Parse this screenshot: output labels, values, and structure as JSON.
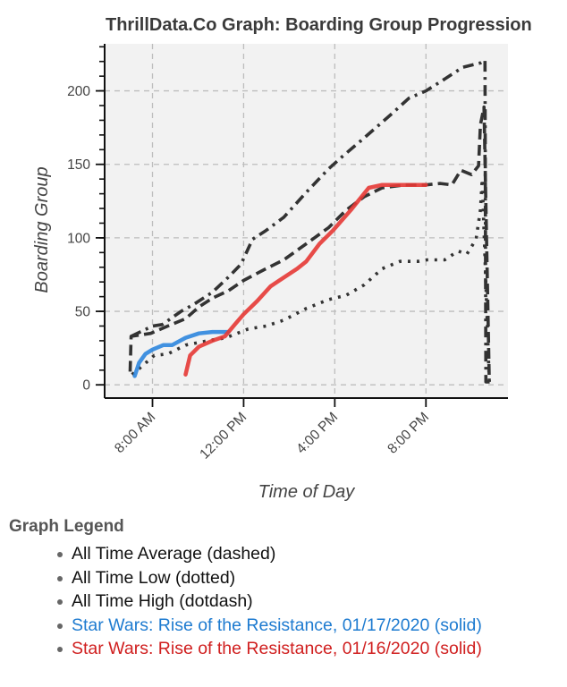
{
  "chart_data": {
    "type": "line",
    "title": "ThrillData.Co Graph: Boarding Group Progression",
    "xlabel": "Time of Day",
    "ylabel": "Boarding Group",
    "x_unit": "hour of day (decimal, 24h)",
    "xlim": [
      5.9,
      23.6
    ],
    "ylim": [
      -9,
      232
    ],
    "grid": true,
    "x_ticks": [
      {
        "value": 8,
        "label": "8:00 AM"
      },
      {
        "value": 12,
        "label": "12:00 PM"
      },
      {
        "value": 16,
        "label": "4:00 PM"
      },
      {
        "value": 20,
        "label": "8:00 PM"
      }
    ],
    "y_ticks": [
      {
        "value": 0,
        "label": "0"
      },
      {
        "value": 50,
        "label": "50"
      },
      {
        "value": 100,
        "label": "100"
      },
      {
        "value": 150,
        "label": "150"
      },
      {
        "value": 200,
        "label": "200"
      }
    ],
    "y_minor_step": 10,
    "series": [
      {
        "name": "All Time Average",
        "style": "dashed",
        "color": "#333333",
        "x": [
          7.02,
          7.06,
          7.92,
          8.67,
          9.45,
          10.04,
          10.63,
          11.33,
          12.0,
          12.98,
          13.76,
          14.75,
          15.73,
          16.51,
          17.29,
          18.08,
          19.06,
          20.0,
          20.63,
          21.14,
          21.53,
          22.0,
          22.31,
          22.39,
          22.55,
          22.78
        ],
        "y": [
          9,
          33,
          35,
          40,
          45,
          53,
          59,
          64,
          71,
          79,
          85,
          96,
          107,
          119,
          128,
          134,
          136,
          136,
          137,
          136,
          146,
          143,
          149,
          177,
          189,
          2
        ]
      },
      {
        "name": "All Time Low",
        "style": "dotted",
        "color": "#333333",
        "x": [
          7.1,
          7.49,
          8.08,
          8.67,
          9.45,
          10.43,
          11.22,
          12.2,
          12.98,
          13.76,
          14.75,
          15.73,
          16.51,
          17.29,
          18.08,
          18.86,
          19.65,
          20.04,
          20.82,
          21.41,
          21.8,
          22.2,
          22.39,
          22.47,
          22.78
        ],
        "y": [
          7,
          12,
          20,
          21,
          27,
          30,
          32,
          38,
          40,
          44,
          52,
          58,
          61,
          68,
          79,
          84,
          84,
          85,
          85,
          91,
          89,
          99,
          119,
          140,
          2
        ]
      },
      {
        "name": "All Time High",
        "style": "dotdash",
        "color": "#333333",
        "x": [
          7.06,
          8.0,
          8.43,
          9.25,
          9.84,
          10.63,
          11.25,
          11.88,
          12.39,
          12.98,
          13.76,
          14.75,
          15.73,
          16.31,
          17.29,
          18.47,
          19.25,
          20.0,
          20.82,
          21.61,
          22.39,
          22.59,
          22.63,
          22.86
        ],
        "y": [
          33,
          40,
          41,
          50,
          55,
          63,
          72,
          82,
          99,
          105,
          114,
          131,
          147,
          155,
          168,
          184,
          195,
          200,
          208,
          216,
          219,
          221,
          2,
          2
        ]
      },
      {
        "name": "Star Wars: Rise of the Resistance, 01/17/2020",
        "style": "solid",
        "color": "#2e86de",
        "x": [
          7.22,
          7.41,
          7.69,
          8.0,
          8.47,
          8.86,
          9.45,
          10.04,
          10.63,
          11.33
        ],
        "y": [
          6,
          15,
          21,
          24,
          27,
          27,
          32,
          35,
          36,
          36
        ]
      },
      {
        "name": "Star Wars: Rise of the Resistance, 01/16/2020",
        "style": "solid",
        "color": "#e53935",
        "x": [
          9.45,
          9.65,
          10.04,
          10.63,
          11.18,
          11.61,
          12.0,
          12.59,
          13.18,
          13.57,
          14.35,
          14.75,
          15.33,
          15.92,
          16.71,
          17.49,
          18.08,
          20.0
        ],
        "y": [
          7,
          20,
          26,
          30,
          33,
          41,
          48,
          57,
          67,
          71,
          79,
          84,
          96,
          105,
          119,
          134,
          136,
          136
        ]
      }
    ],
    "legend": {
      "title": "Graph Legend",
      "placement": "below",
      "entries": [
        {
          "label": "All Time Average (dashed)",
          "color": "#111111"
        },
        {
          "label": "All Time Low (dotted)",
          "color": "#111111"
        },
        {
          "label": "All Time High (dotdash)",
          "color": "#111111"
        },
        {
          "label": "Star Wars: Rise of the Resistance, 01/17/2020 (solid)",
          "color": "#1e7bd0"
        },
        {
          "label": "Star Wars: Rise of the Resistance, 01/16/2020 (solid)",
          "color": "#d01f1f"
        }
      ]
    },
    "colors": {
      "panel_background": "#f2f2f2",
      "grid": "#bdbdbd",
      "axis": "#111111"
    }
  }
}
